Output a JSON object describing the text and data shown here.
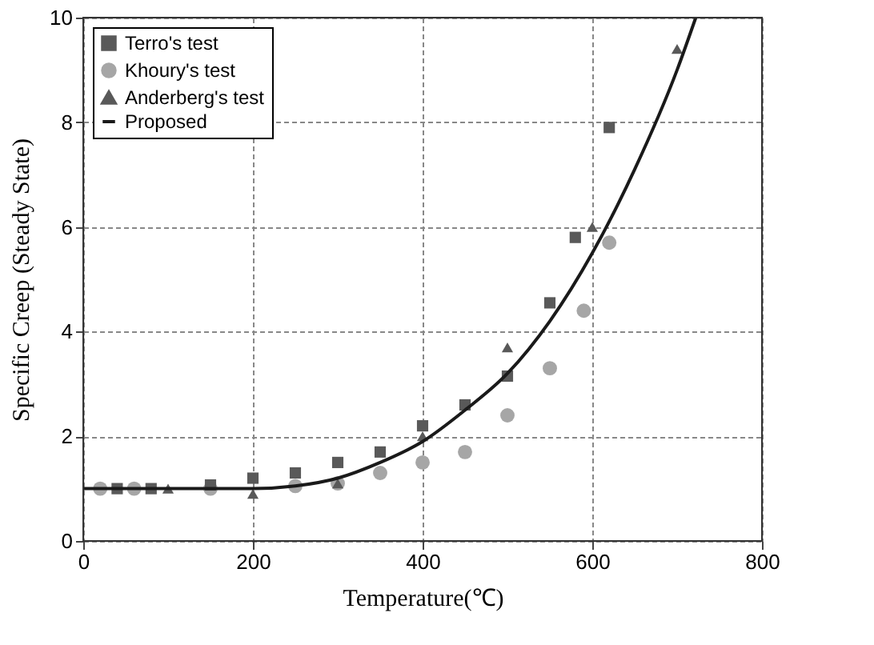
{
  "chart_data": {
    "type": "scatter",
    "xlabel": "Temperature(℃)",
    "ylabel": "Specific Creep (Steady State)",
    "xlim": [
      0,
      800
    ],
    "ylim": [
      0,
      10
    ],
    "xticks": [
      0,
      200,
      400,
      600,
      800
    ],
    "yticks": [
      0,
      2,
      4,
      6,
      8,
      10
    ],
    "grid": true,
    "legend": "top left",
    "series": [
      {
        "name": "Terro's test",
        "color": "#595959",
        "marker": "square",
        "x": [
          40,
          80,
          150,
          200,
          250,
          300,
          350,
          400,
          450,
          500,
          550,
          580,
          620
        ],
        "values": [
          1.0,
          1.0,
          1.07,
          1.2,
          1.3,
          1.5,
          1.7,
          2.2,
          2.6,
          3.15,
          4.55,
          5.8,
          7.9
        ]
      },
      {
        "name": "Khoury's test",
        "color": "#a6a6a6",
        "marker": "circle",
        "x": [
          20,
          60,
          150,
          250,
          300,
          350,
          400,
          450,
          500,
          550,
          590,
          620
        ],
        "values": [
          1.0,
          1.0,
          1.0,
          1.05,
          1.1,
          1.3,
          1.5,
          1.7,
          2.4,
          3.3,
          4.4,
          5.7
        ]
      },
      {
        "name": "Anderberg's test",
        "color": "#595959",
        "marker": "triangle",
        "x": [
          100,
          200,
          300,
          400,
          500,
          600,
          700
        ],
        "values": [
          1.0,
          0.9,
          1.1,
          2.0,
          3.7,
          6.0,
          9.4
        ]
      },
      {
        "name": "Proposed",
        "type": "line",
        "color": "#1a1a1a",
        "marker": "none",
        "line_style": "solid",
        "x": [
          0,
          200,
          250,
          300,
          350,
          400,
          450,
          500,
          550,
          600,
          650,
          700,
          722
        ],
        "values": [
          1.0,
          1.0,
          1.05,
          1.2,
          1.5,
          1.9,
          2.5,
          3.2,
          4.2,
          5.5,
          7.1,
          9.0,
          10.0
        ]
      }
    ]
  }
}
